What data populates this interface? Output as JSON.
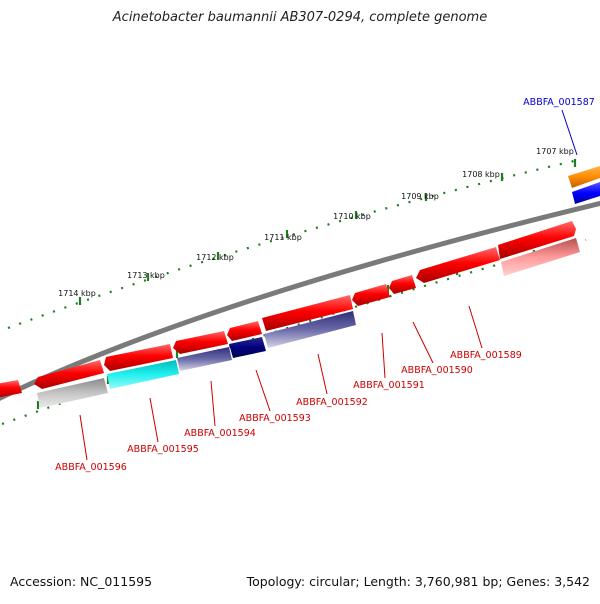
{
  "title": "Acinetobacter baumannii AB307-0294, complete genome",
  "footer": {
    "accession": "Accession: NC_011595",
    "summary": "Topology: circular; Length: 3,760,981 bp; Genes: 3,542"
  },
  "colors": {
    "backbone": "#7a7a7a",
    "tick": "#1e7d1e",
    "tick_label": "#111111",
    "label_red": "#cc0000",
    "label_blue": "#0000cc"
  },
  "kbp_ticks": [
    {
      "label": "1707 kbp"
    },
    {
      "label": "1708 kbp"
    },
    {
      "label": "1709 kbp"
    },
    {
      "label": "1710 kbp"
    },
    {
      "label": "1711 kbp"
    },
    {
      "label": "1712 kbp"
    },
    {
      "label": "1713 kbp"
    },
    {
      "label": "1714 kbp"
    }
  ],
  "gene_labels": [
    {
      "text": "ABBFA_001587",
      "color": "#0000cc"
    },
    {
      "text": "ABBFA_001589",
      "color": "#cc0000"
    },
    {
      "text": "ABBFA_001590",
      "color": "#cc0000"
    },
    {
      "text": "ABBFA_001591",
      "color": "#cc0000"
    },
    {
      "text": "ABBFA_001592",
      "color": "#cc0000"
    },
    {
      "text": "ABBFA_001593",
      "color": "#cc0000"
    },
    {
      "text": "ABBFA_001594",
      "color": "#cc0000"
    },
    {
      "text": "ABBFA_001595",
      "color": "#cc0000"
    },
    {
      "text": "ABBFA_001596",
      "color": "#cc0000"
    }
  ]
}
